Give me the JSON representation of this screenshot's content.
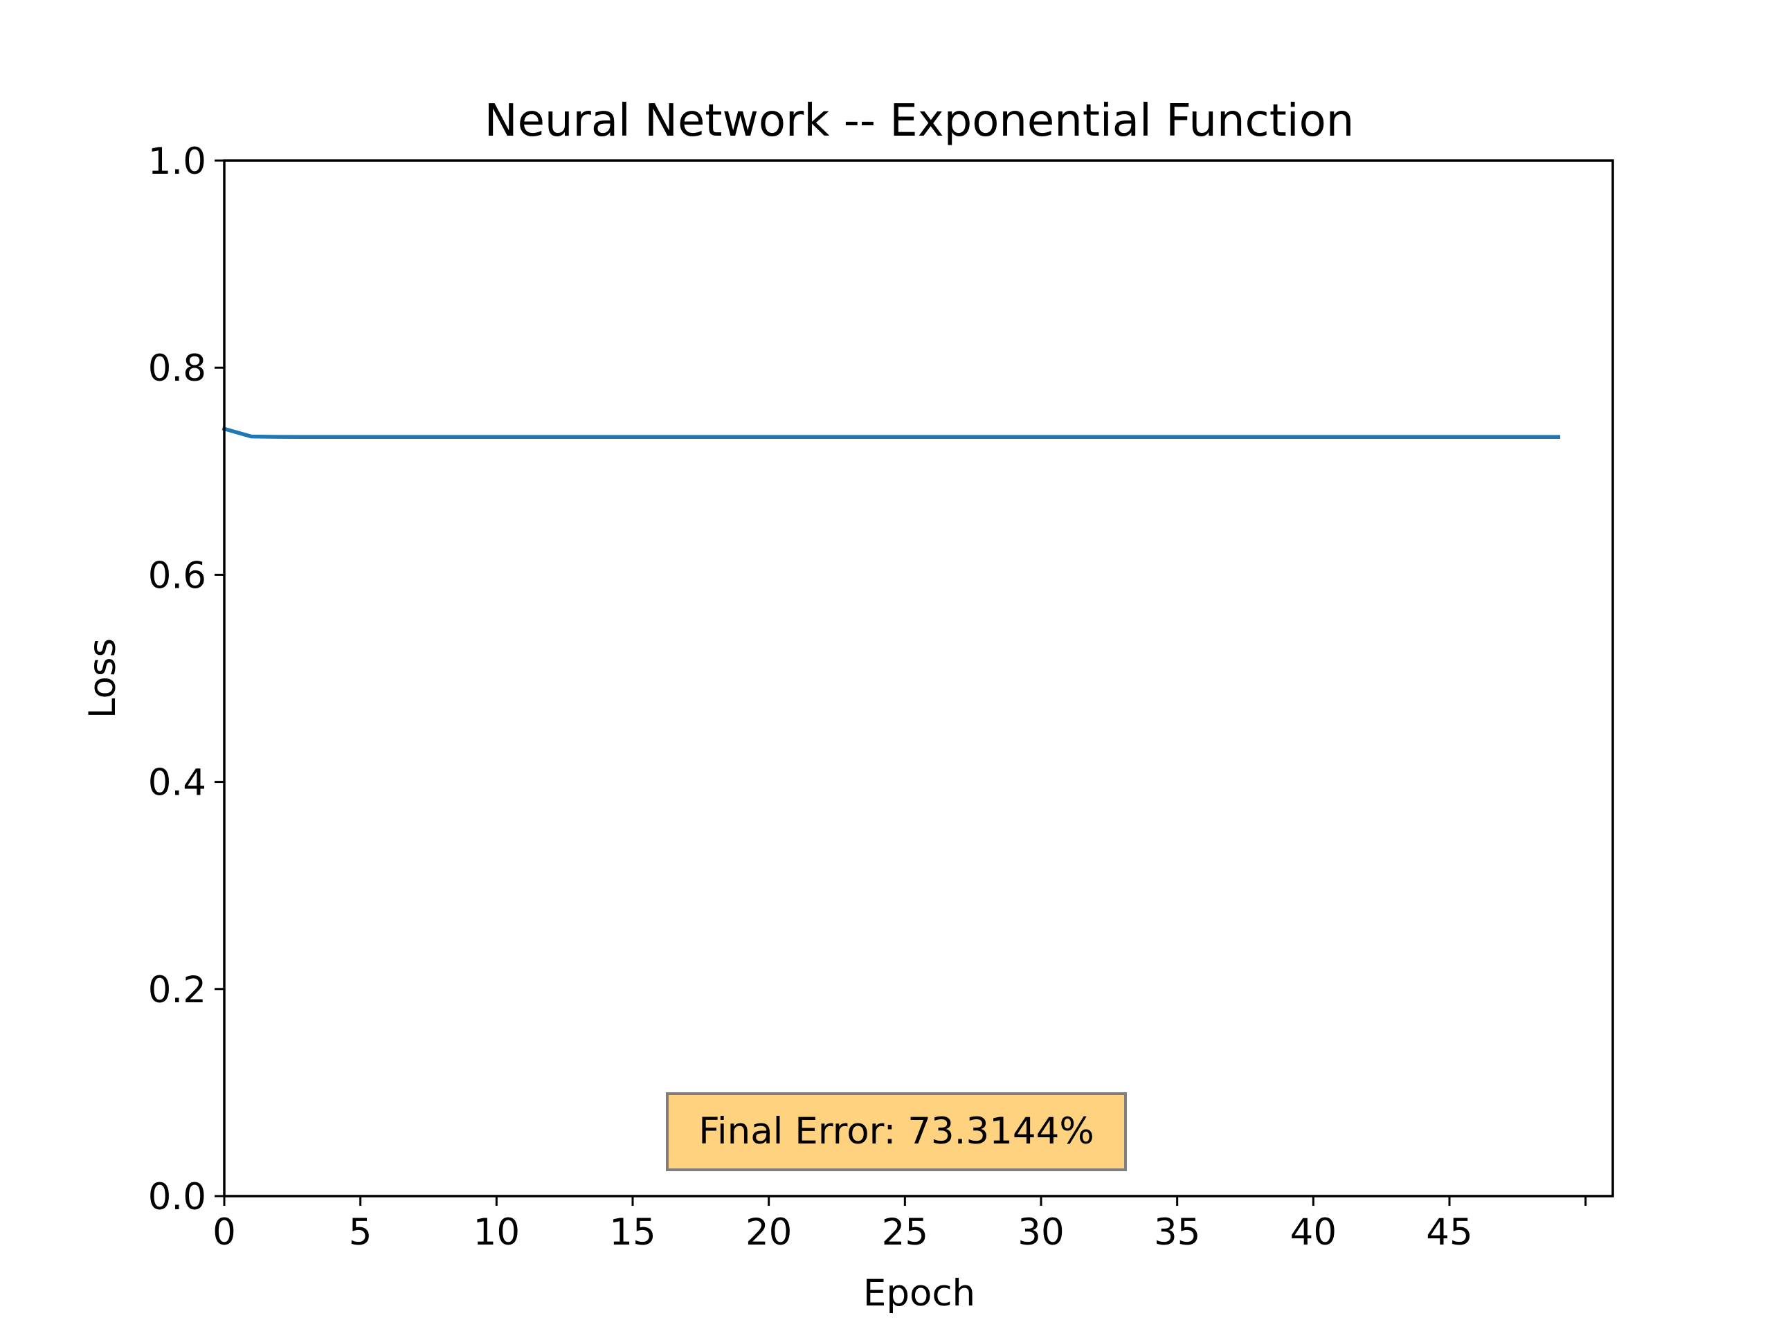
{
  "chart_data": {
    "type": "line",
    "title": "Neural Network -- Exponential Function",
    "xlabel": "Epoch",
    "ylabel": "Loss",
    "xlim": [
      0,
      51
    ],
    "ylim": [
      0,
      1.0
    ],
    "xticks": [
      0,
      5,
      10,
      15,
      20,
      25,
      30,
      35,
      40,
      45,
      50
    ],
    "xtick_labels": [
      "0",
      "5",
      "10",
      "15",
      "20",
      "25",
      "30",
      "35",
      "40",
      "45",
      ""
    ],
    "yticks": [
      0.0,
      0.2,
      0.4,
      0.6,
      0.8,
      1.0
    ],
    "ytick_labels": [
      "0.0",
      "0.2",
      "0.4",
      "0.6",
      "0.8",
      "1.0"
    ],
    "grid": false,
    "series": [
      {
        "color": "#1f77b4",
        "x": [
          0,
          1,
          2,
          3,
          4,
          5,
          6,
          7,
          8,
          9,
          10,
          11,
          12,
          13,
          14,
          15,
          16,
          17,
          18,
          19,
          20,
          21,
          22,
          23,
          24,
          25,
          26,
          27,
          28,
          29,
          30,
          31,
          32,
          33,
          34,
          35,
          36,
          37,
          38,
          39,
          40,
          41,
          42,
          43,
          44,
          45,
          46,
          47,
          48,
          49
        ],
        "values": [
          0.741,
          0.7335,
          0.7332,
          0.7331,
          0.7331,
          0.7331,
          0.7331,
          0.7331,
          0.7331,
          0.7331,
          0.7331,
          0.7331,
          0.7331,
          0.7331,
          0.7331,
          0.7331,
          0.7331,
          0.7331,
          0.7331,
          0.7331,
          0.7331,
          0.7331,
          0.7331,
          0.7331,
          0.7331,
          0.7331,
          0.7331,
          0.7331,
          0.7331,
          0.7331,
          0.7331,
          0.7331,
          0.7331,
          0.7331,
          0.7331,
          0.7331,
          0.7331,
          0.7331,
          0.7331,
          0.7331,
          0.7331,
          0.7331,
          0.7331,
          0.7331,
          0.7331,
          0.7331,
          0.7331,
          0.7331,
          0.7331,
          0.7331
        ]
      }
    ],
    "annotation": {
      "text": "Final Error: 73.3144%",
      "background_color": "#ffd27f",
      "border_color": "#7f7f7f"
    }
  }
}
